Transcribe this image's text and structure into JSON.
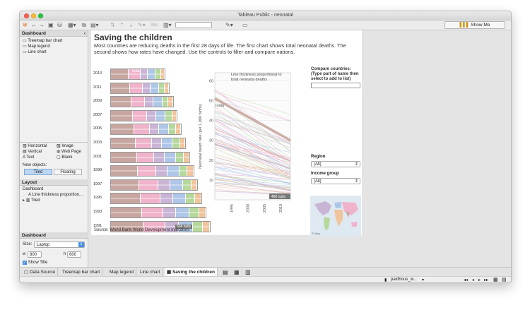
{
  "window": {
    "title": "Tableau Public - neonatal"
  },
  "toolbar": {
    "show_me": "Show Me"
  },
  "sidebar": {
    "dashboard_header": "Dashboard",
    "sheets": [
      "Treemap bar chart",
      "Map legend",
      "Line chart"
    ],
    "objects": [
      "Horizontal",
      "Image",
      "Vertical",
      "Web Page",
      "Text",
      "Blank"
    ],
    "new_objects_label": "New objects:",
    "tiled": "Tiled",
    "floating": "Floating",
    "layout_header": "Layout",
    "layout_items": [
      "Dashboard",
      "Line thickness proportion...",
      "Tiled"
    ],
    "dashboard2_header": "Dashboard",
    "size_label": "Size:",
    "size_value": "Laptop",
    "w_label": "w",
    "w_value": "800",
    "h_label": "h",
    "h_value": "600",
    "show_title": "Show Title"
  },
  "dashboard": {
    "title": "Saving the children",
    "subtitle": "Most countries are reducing deaths in the first 28 days of life. The first chart shows total neonatal deaths. The second shows how rates have changed. Use the controls to filter and compare nations.",
    "source": "Source: World Bank World Development Indicators",
    "treemap_years": [
      "2013",
      "2011",
      "2009",
      "2007",
      "2005",
      "2003",
      "2001",
      "1999",
      "1997",
      "1995",
      "1993",
      "1991"
    ],
    "treemap_label": "India",
    "treemap_nulls": "504 nulls",
    "line_annotation": "Line thickness proportional to total neonatal deaths",
    "line_label": "India",
    "y_axis_title": "Neonatal death rate (per 1,000 births)",
    "y_ticks": [
      "60",
      "50",
      "40",
      "30",
      "20",
      "10"
    ],
    "x_ticks": [
      "1995",
      "2000",
      "2005",
      "2010"
    ],
    "line_nulls": "460 nulls",
    "compare_label": "Compare countries: (Type part of name then select to add to list)",
    "region_label": "Region",
    "region_value": "(All)",
    "income_label": "Income group",
    "income_value": "(All)",
    "map_credit": "© Map"
  },
  "tabs": [
    "Data Source",
    "Treemap bar chart",
    "Map legend",
    "Line chart",
    "Saving the children"
  ],
  "status": {
    "user": "paldhous_w..."
  },
  "colors": {
    "india_bar": "#c7a6a0",
    "pink": "#f0b3cb",
    "lavender": "#c9b4d6",
    "blue": "#aec7e8",
    "green": "#b5d99c",
    "orange": "#f2c49b",
    "accent": "#4a90e2"
  }
}
